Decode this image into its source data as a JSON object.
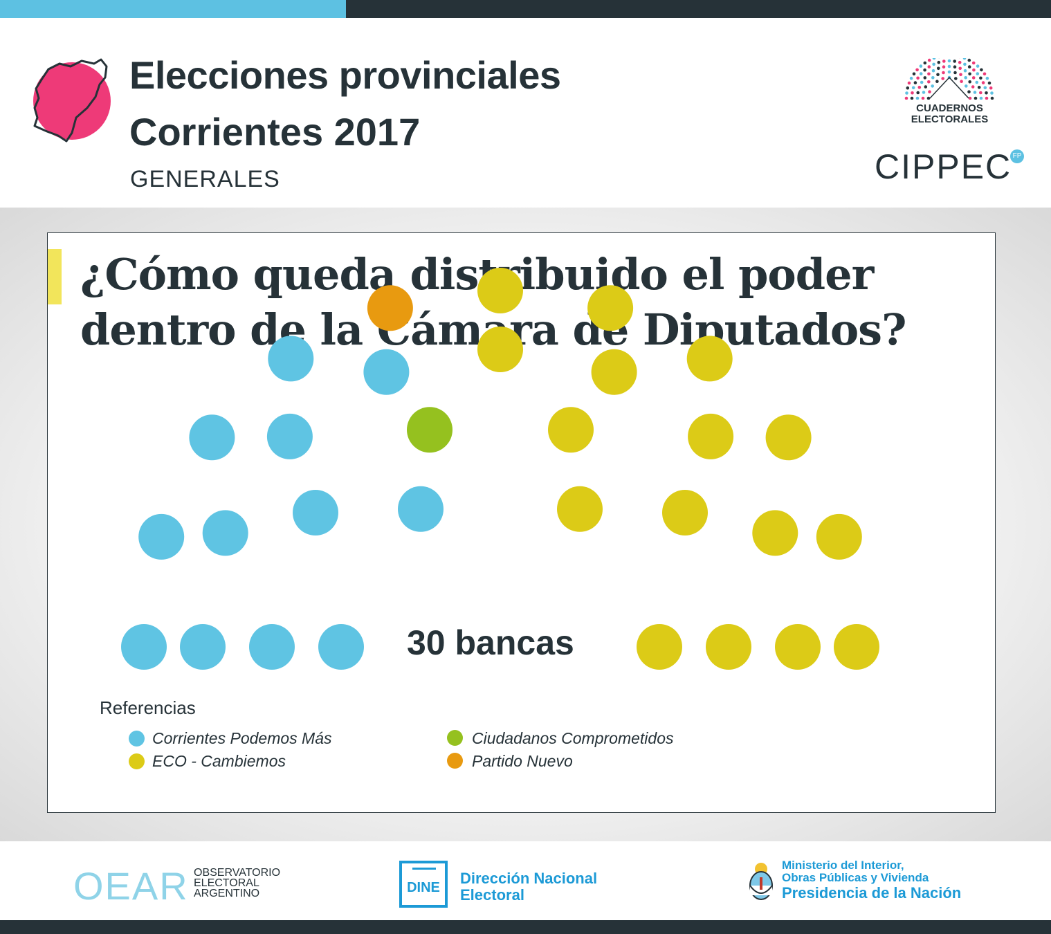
{
  "header": {
    "title_line1": "Elecciones provinciales",
    "title_line2": "Corrientes 2017",
    "subtitle": "GENERALES",
    "logo_cuadernos_line1": "CUADERNOS",
    "logo_cuadernos_line2": "ELECTORALES",
    "logo_cippec": "CIPPEC",
    "logo_cippec_mark": "FP"
  },
  "question": {
    "line1": "¿Cómo queda distribuido el poder",
    "line2": "dentro de la Cámara de Diputados?"
  },
  "chart_data": {
    "type": "parliament",
    "title": "¿Cómo queda distribuido el poder dentro de la Cámara de Diputados?",
    "total_label": "30 bancas",
    "total_seats": 30,
    "series": [
      {
        "name": "Corrientes Podemos Más",
        "seats": 12,
        "color": "#5fc4e3"
      },
      {
        "name": "Ciudadanos Comprometidos",
        "seats": 1,
        "color": "#95c11f"
      },
      {
        "name": "Partido Nuevo",
        "seats": 1,
        "color": "#e89a10"
      },
      {
        "name": "ECO - Cambiemos",
        "seats": 16,
        "color": "#dccb17"
      }
    ],
    "legend_title": "Referencias",
    "legend": [
      {
        "label": "Corrientes Podemos Más",
        "color": "#5fc4e3"
      },
      {
        "label": "ECO - Cambiemos",
        "color": "#dccb17"
      },
      {
        "label": "Ciudadanos Comprometidos",
        "color": "#95c11f"
      },
      {
        "label": "Partido Nuevo",
        "color": "#e89a10"
      }
    ]
  },
  "footer": {
    "oear": "OEAR",
    "oear_sub1": "OBSERVATORIO",
    "oear_sub2": "ELECTORAL",
    "oear_sub3": "ARGENTINO",
    "dine": "DINE",
    "dne_line1": "Dirección Nacional",
    "dne_line2": "Electoral",
    "ministerio_line1": "Ministerio del Interior,",
    "ministerio_line2": "Obras Públicas y Vivienda",
    "presidencia": "Presidencia de la Nación"
  },
  "colors": {
    "dark": "#263238",
    "accent_blue": "#5dc1e2",
    "accent_pink": "#ee3a78",
    "accent_yellow": "#f2e55b",
    "gov_blue": "#1c9ad6"
  }
}
